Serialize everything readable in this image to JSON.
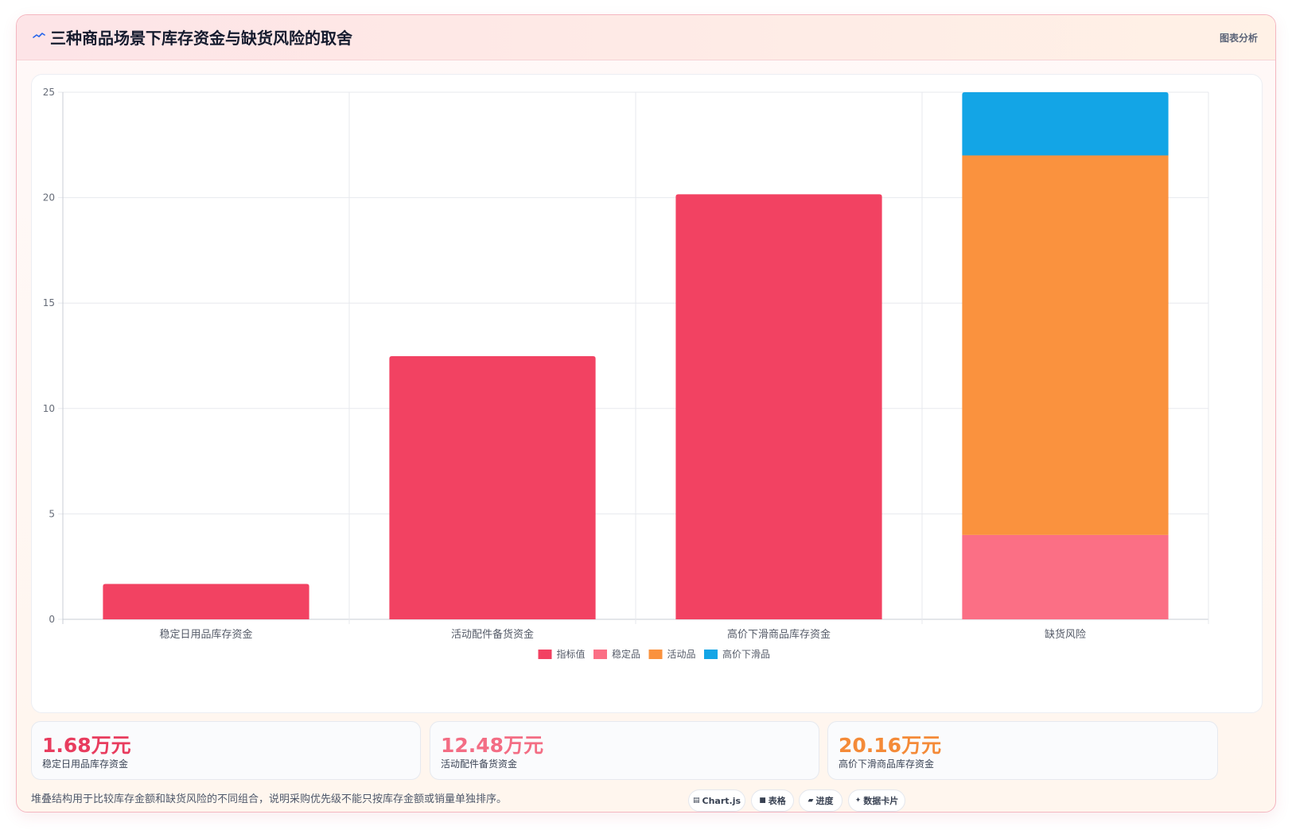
{
  "header": {
    "title": "三种商品场景下库存资金与缺货风险的取舍",
    "badge": "图表分析",
    "icon": "pulse-icon"
  },
  "chart_data": {
    "type": "bar",
    "categories": [
      "稳定日用品库存资金",
      "活动配件备货资金",
      "高价下滑商品库存资金",
      "缺货风险"
    ],
    "series": [
      {
        "name": "指标值",
        "values": [
          1.68,
          12.48,
          20.16,
          null
        ],
        "color": "#f24262"
      },
      {
        "name": "稳定品",
        "values": [
          null,
          null,
          null,
          4
        ],
        "color": "#fb6f85"
      },
      {
        "name": "活动品",
        "values": [
          null,
          null,
          null,
          18
        ],
        "color": "#fa923e"
      },
      {
        "name": "高价下滑品",
        "values": [
          null,
          null,
          null,
          3
        ],
        "color": "#13a5e6"
      }
    ],
    "stacked": true,
    "ylim": [
      0,
      25
    ],
    "yticks": [
      0,
      5,
      10,
      15,
      20,
      25
    ],
    "grid": true,
    "legend": "bottom"
  },
  "stats": [
    {
      "value": "1.68万元",
      "label": "稳定日用品库存资金",
      "color": "#e83c5e"
    },
    {
      "value": "12.48万元",
      "label": "活动配件备货资金",
      "color": "#f36d84"
    },
    {
      "value": "20.16万元",
      "label": "高价下滑商品库存资金",
      "color": "#f48a38"
    }
  ],
  "footer": {
    "note": "堆叠结构用于比较库存金额和缺货风险的不同组合，说明采购优先级不能只按库存金额或销量单独排序。",
    "chips": [
      {
        "icon": "chart-icon",
        "glyph": "▤",
        "label": "Chart.js"
      },
      {
        "icon": "table-icon",
        "glyph": "■",
        "label": "表格"
      },
      {
        "icon": "progress-icon",
        "glyph": "▰",
        "label": "进度"
      },
      {
        "icon": "sparkle-icon",
        "glyph": "✦",
        "label": "数据卡片"
      }
    ]
  }
}
